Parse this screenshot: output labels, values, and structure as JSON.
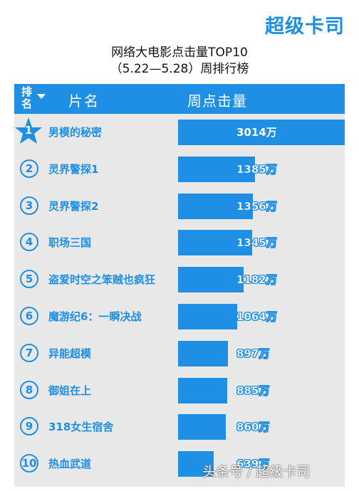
{
  "logo": "超级卡司",
  "title_line1": "网络大电影点击量TOP10",
  "title_line2": "（5.22—5.28）周排行榜",
  "header": {
    "rank": "排名",
    "name": "片名",
    "clicks": "周点击量"
  },
  "colors": {
    "accent": "#1f8fe5",
    "panel": "#e8e8e8"
  },
  "chart_data": {
    "type": "bar",
    "categories": [
      "男模的秘密",
      "灵界警探1",
      "灵界警探2",
      "职场三国",
      "盗爱时空之笨贼也疯狂",
      "魔游纪6：一瞬决战",
      "异能超模",
      "御姐在上",
      "318女生宿舍",
      "热血武道"
    ],
    "values": [
      3014,
      1385,
      1356,
      1345,
      1182,
      1064,
      897,
      885,
      860,
      639
    ],
    "ranks": [
      "1",
      "②",
      "③",
      "④",
      "⑤",
      "⑥",
      "⑦",
      "⑧",
      "⑨",
      "⑩"
    ],
    "value_labels": [
      "3014万",
      "1385万",
      "1356万",
      "1345万",
      "1182万",
      "1064万",
      "897万",
      "885万",
      "860万",
      "639万"
    ],
    "unit": "万"
  },
  "watermark": "头条号 / 超级卡司"
}
